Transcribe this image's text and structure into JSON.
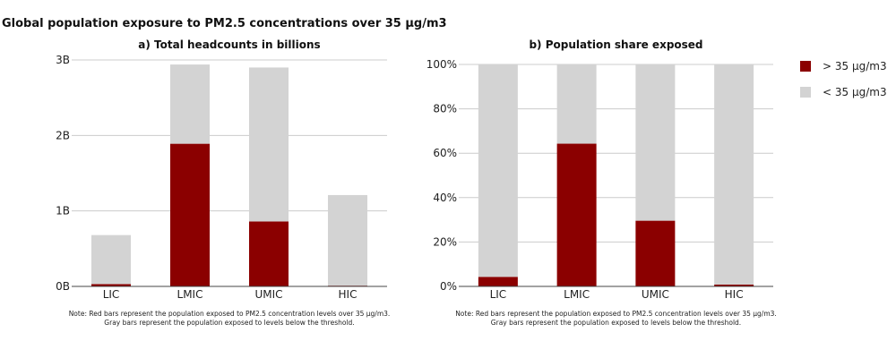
{
  "title": "Global population exposure to PM2.5 concentrations over 35 μg/m3",
  "legend": [
    {
      "label": "> 35 μg/m3",
      "color": "#8b0000"
    },
    {
      "label": "< 35 μg/m3",
      "color": "#d3d3d3"
    }
  ],
  "chart_data": [
    {
      "type": "bar",
      "stacked": true,
      "title": "a) Total headcounts in billions",
      "categories": [
        "LIC",
        "LMIC",
        "UMIC",
        "HIC"
      ],
      "series": [
        {
          "name": "> 35 μg/m3",
          "values": [
            0.03,
            1.89,
            0.86,
            0.01
          ]
        },
        {
          "name": "< 35 μg/m3",
          "values": [
            0.65,
            1.05,
            2.04,
            1.2
          ]
        }
      ],
      "ylim": [
        0,
        3
      ],
      "yticks": [
        0,
        1,
        2,
        3
      ],
      "ytick_labels": [
        "0B",
        "1B",
        "2B",
        "3B"
      ],
      "grid": true,
      "note": [
        "Note: Red bars represent the population exposed to PM2.5 concentration levels over 35 μg/m3.",
        "Gray bars represent the population exposed to levels below the threshold."
      ]
    },
    {
      "type": "bar",
      "stacked": true,
      "title": "b) Population share exposed",
      "categories": [
        "LIC",
        "LMIC",
        "UMIC",
        "HIC"
      ],
      "series": [
        {
          "name": "> 35 μg/m3",
          "values": [
            4.3,
            64.3,
            29.6,
            0.8
          ]
        },
        {
          "name": "< 35 μg/m3",
          "values": [
            95.7,
            35.7,
            70.4,
            99.2
          ]
        }
      ],
      "ylim": [
        0,
        100
      ],
      "yticks": [
        0,
        20,
        40,
        60,
        80,
        100
      ],
      "ytick_labels": [
        "0%",
        "20%",
        "40%",
        "60%",
        "80%",
        "100%"
      ],
      "grid": true,
      "note": [
        "Note: Red bars represent the population exposed to PM2.5 concentration levels over 35 μg/m3.",
        "Gray bars represent the population exposed to levels below the threshold."
      ]
    }
  ]
}
